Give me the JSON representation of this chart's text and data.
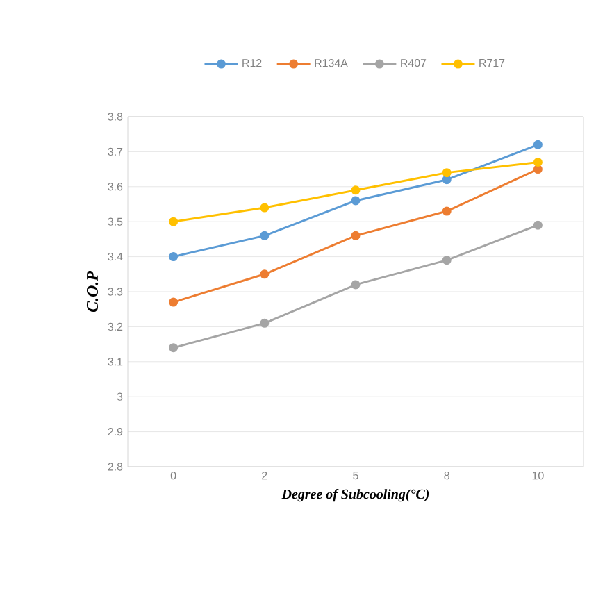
{
  "chart_data": {
    "type": "line",
    "xlabel": "Degree of Subcooling(°C)",
    "ylabel": "C.O.P",
    "categories": [
      "0",
      "2",
      "5",
      "8",
      "10"
    ],
    "series": [
      {
        "name": "R12",
        "color": "#5b9bd5",
        "values": [
          3.4,
          3.46,
          3.56,
          3.62,
          3.72
        ]
      },
      {
        "name": "R134A",
        "color": "#ed7d31",
        "values": [
          3.27,
          3.35,
          3.46,
          3.53,
          3.65
        ]
      },
      {
        "name": "R407",
        "color": "#a5a5a5",
        "values": [
          3.14,
          3.21,
          3.32,
          3.39,
          3.49
        ]
      },
      {
        "name": "R717",
        "color": "#ffc000",
        "values": [
          3.5,
          3.54,
          3.59,
          3.64,
          3.67
        ]
      }
    ],
    "ylim": [
      2.8,
      3.8
    ],
    "yticks": [
      2.8,
      2.9,
      3,
      3.1,
      3.2,
      3.3,
      3.4,
      3.5,
      3.6,
      3.7,
      3.8
    ],
    "grid": "y",
    "legend": "top",
    "marker": "circle",
    "line_style": "solid"
  }
}
